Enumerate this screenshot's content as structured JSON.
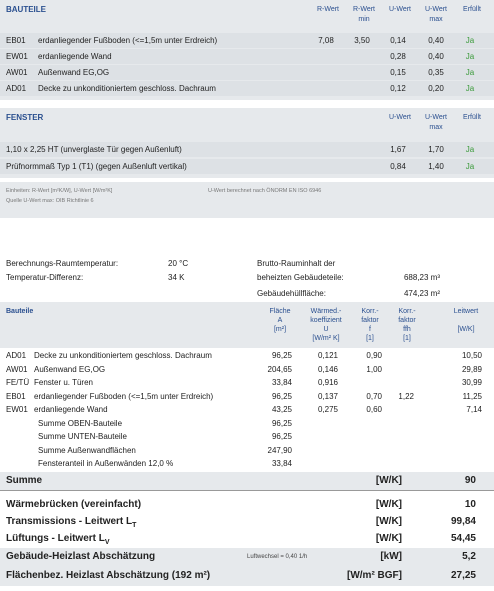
{
  "bauteile": {
    "header": [
      [
        "BAUTEILE"
      ],
      [
        "R-Wert"
      ],
      [
        "R-Wert",
        "min"
      ],
      [
        "U-Wert"
      ],
      [
        "U-Wert",
        "max"
      ],
      [
        "Erfüllt"
      ]
    ],
    "rows": [
      {
        "code": "EB01",
        "name": "erdanliegender Fußboden (<=1,5m unter Erdreich)",
        "r": "7,08",
        "r_min": "3,50",
        "u": "0,14",
        "u_max": "0,40",
        "ok": "Ja"
      },
      {
        "code": "EW01",
        "name": "erdanliegende Wand",
        "u": "0,28",
        "u_max": "0,40",
        "ok": "Ja"
      },
      {
        "code": "AW01",
        "name": "Außenwand EG,OG",
        "u": "0,15",
        "u_max": "0,35",
        "ok": "Ja"
      },
      {
        "code": "AD01",
        "name": "Decke zu unkonditioniertem geschloss. Dachraum",
        "u": "0,12",
        "u_max": "0,20",
        "ok": "Ja"
      }
    ]
  },
  "fenster": {
    "header": [
      [
        "FENSTER"
      ],
      [
        "U-Wert"
      ],
      [
        "U-Wert",
        "max"
      ],
      [
        "Erfüllt"
      ]
    ],
    "rows": [
      {
        "name": "1,10 x 2,25 HT  (unverglaste Tür gegen Außenluft)",
        "u": "1,67",
        "u_max": "1,70",
        "ok": "Ja"
      },
      {
        "name": "Prüfnormmaß Typ 1 (T1) (gegen Außenluft vertikal)",
        "u": "0,84",
        "u_max": "1,40",
        "ok": "Ja"
      }
    ]
  },
  "notes": {
    "units": "Einheiten: R-Wert [m²K/W], U-Wert [W/m²K]",
    "source": "Quelle U-Wert max: OIB Richtlinie 6",
    "method": "U-Wert berechnet nach ÖNORM EN ISO 6946"
  },
  "params": {
    "left": [
      {
        "label": "Berechnungs-Raumtemperatur:",
        "value": "20 °C"
      },
      {
        "label": "Temperatur-Differenz:",
        "value": "34 K"
      }
    ],
    "volume": {
      "label": [
        "Brutto-Rauminhalt der",
        "beheizten Gebäudeteile:"
      ],
      "value": "688,23 m³"
    },
    "hull": {
      "label": "Gebäudehüllfläche:",
      "value": "474,23 m²"
    }
  },
  "leitwert": {
    "header": [
      [
        "Bauteile"
      ],
      [
        "Fläche",
        "A",
        "[m²]"
      ],
      [
        "Wärmed.-",
        "koeffizient",
        "U",
        "[W/m² K]"
      ],
      [
        "Korr.-",
        "faktor",
        "f",
        "[1]"
      ],
      [
        "Korr.-",
        "faktor",
        "ffh",
        "[1]"
      ],
      [
        "Leitwert",
        "",
        "[W/K]"
      ]
    ],
    "rows": [
      {
        "code": "AD01",
        "name": "Decke zu unkonditioniertem geschloss. Dachraum",
        "a": "96,25",
        "u": "0,121",
        "f": "0,90",
        "lw": "10,50"
      },
      {
        "code": "AW01",
        "name": "Außenwand EG,OG",
        "a": "204,65",
        "u": "0,146",
        "f": "1,00",
        "lw": "29,89"
      },
      {
        "code": "FE/TÜ",
        "name": "Fenster u. Türen",
        "a": "33,84",
        "u": "0,916",
        "lw": "30,99"
      },
      {
        "code": "EB01",
        "name": "erdanliegender Fußboden (<=1,5m unter Erdreich)",
        "a": "96,25",
        "u": "0,137",
        "f": "0,70",
        "ffh": "1,22",
        "lw": "11,25"
      },
      {
        "code": "EW01",
        "name": "erdanliegende Wand",
        "a": "43,25",
        "u": "0,275",
        "f": "0,60",
        "lw": "7,14"
      }
    ],
    "sums": [
      {
        "label": "Summe OBEN-Bauteile",
        "value": "96,25"
      },
      {
        "label": "Summe UNTEN-Bauteile",
        "value": "96,25"
      },
      {
        "label": "Summe Außenwandflächen",
        "value": "247,90"
      },
      {
        "label": "Fensteranteil in Außenwänden 12,0 %",
        "value": "33,84"
      }
    ]
  },
  "summary": [
    {
      "label": "Summe",
      "unit": "[W/K]",
      "value": "90"
    },
    {
      "label": "Wärmebrücken (vereinfacht)",
      "unit": "[W/K]",
      "value": "10"
    },
    {
      "label": "Transmissions - Leitwert L",
      "sub": "T",
      "unit": "[W/K]",
      "value": "99,84"
    },
    {
      "label": "Lüftungs - Leitwert L",
      "sub": "V",
      "unit": "[W/K]",
      "value": "54,45"
    },
    {
      "label": "Gebäude-Heizlast Abschätzung",
      "note": "Luftwechsel = 0,40 1/h",
      "unit": "[kW]",
      "value": "5,2"
    },
    {
      "label": "Flächenbez. Heizlast Abschätzung (192 m²)",
      "unit": "[W/m² BGF]",
      "value": "27,25"
    }
  ]
}
